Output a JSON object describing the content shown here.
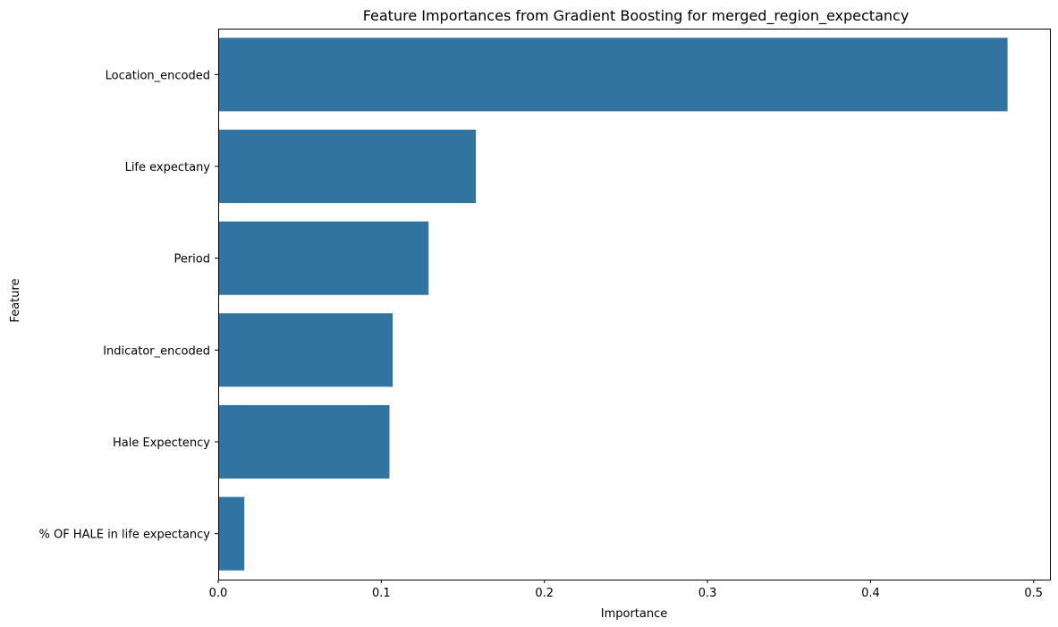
{
  "chart_data": {
    "type": "bar",
    "orientation": "horizontal",
    "title": "Feature Importances from Gradient Boosting for merged_region_expectancy",
    "xlabel": "Importance",
    "ylabel": "Feature",
    "categories": [
      "Location_encoded",
      "Life expectany",
      "Period",
      "Indicator_encoded",
      "Hale Expectency",
      "% OF HALE in life expectancy"
    ],
    "values": [
      0.484,
      0.158,
      0.129,
      0.107,
      0.105,
      0.016
    ],
    "xlim": [
      0,
      0.51
    ],
    "xticks": [
      0.0,
      0.1,
      0.2,
      0.3,
      0.4,
      0.5
    ],
    "xtick_labels": [
      "0.0",
      "0.1",
      "0.2",
      "0.3",
      "0.4",
      "0.5"
    ],
    "bar_color": "#3274a1",
    "grid": false
  }
}
